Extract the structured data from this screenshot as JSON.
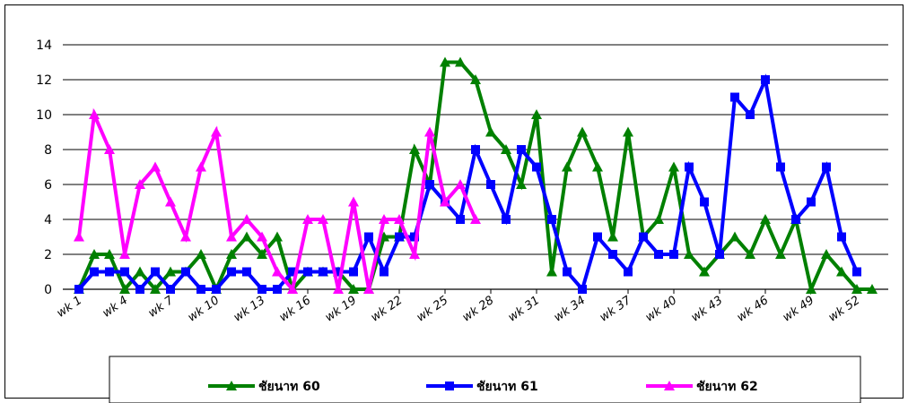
{
  "chart_data": {
    "type": "line",
    "title": "",
    "xlabel": "",
    "ylabel": "",
    "ylim": [
      0,
      14
    ],
    "yticks": [
      0,
      2,
      4,
      6,
      8,
      10,
      12,
      14
    ],
    "grid": "horizontal",
    "legend_position": "bottom",
    "x": [
      1,
      2,
      3,
      4,
      5,
      6,
      7,
      8,
      9,
      10,
      11,
      12,
      13,
      14,
      15,
      16,
      17,
      18,
      19,
      20,
      21,
      22,
      23,
      24,
      25,
      26,
      27,
      28,
      29,
      30,
      31,
      32,
      33,
      34,
      35,
      36,
      37,
      38,
      39,
      40,
      41,
      42,
      43,
      44,
      45,
      46,
      47,
      48,
      49,
      50,
      51,
      52,
      53
    ],
    "x_tick_labels": [
      {
        "week": 1,
        "label": "wk 1"
      },
      {
        "week": 4,
        "label": "wk 4"
      },
      {
        "week": 7,
        "label": "wk 7"
      },
      {
        "week": 10,
        "label": "wk 10"
      },
      {
        "week": 13,
        "label": "wk 13"
      },
      {
        "week": 16,
        "label": "wk 16"
      },
      {
        "week": 19,
        "label": "wk 19"
      },
      {
        "week": 22,
        "label": "wk 22"
      },
      {
        "week": 25,
        "label": "wk 25"
      },
      {
        "week": 28,
        "label": "wk 28"
      },
      {
        "week": 31,
        "label": "wk 31"
      },
      {
        "week": 34,
        "label": "wk 34"
      },
      {
        "week": 37,
        "label": "wk 37"
      },
      {
        "week": 40,
        "label": "wk 40"
      },
      {
        "week": 43,
        "label": "wk 43"
      },
      {
        "week": 46,
        "label": "wk 46"
      },
      {
        "week": 49,
        "label": "wk 49"
      },
      {
        "week": 52,
        "label": "wk 52"
      }
    ],
    "series": [
      {
        "name": "ชัยนาท 60",
        "color": "#008000",
        "marker": "triangle",
        "values": [
          0,
          2,
          2,
          0,
          1,
          0,
          1,
          1,
          2,
          0,
          2,
          3,
          2,
          3,
          0,
          1,
          1,
          1,
          0,
          0,
          3,
          3,
          8,
          6,
          13,
          13,
          12,
          9,
          8,
          6,
          10,
          1,
          7,
          9,
          7,
          3,
          9,
          3,
          4,
          7,
          2,
          1,
          2,
          3,
          2,
          4,
          2,
          4,
          0,
          2,
          1,
          0,
          0
        ]
      },
      {
        "name": "ชัยนาท 61",
        "color": "#0000FF",
        "marker": "square",
        "values": [
          0,
          1,
          1,
          1,
          0,
          1,
          0,
          1,
          0,
          0,
          1,
          1,
          0,
          0,
          1,
          1,
          1,
          1,
          1,
          3,
          1,
          3,
          3,
          6,
          5,
          4,
          8,
          6,
          4,
          8,
          7,
          4,
          1,
          0,
          3,
          2,
          1,
          3,
          2,
          2,
          7,
          5,
          2,
          11,
          10,
          12,
          7,
          4,
          5,
          7,
          3,
          1,
          null
        ]
      },
      {
        "name": "ชัยนาท 62",
        "color": "#FF00FF",
        "marker": "triangle",
        "values": [
          3,
          10,
          8,
          2,
          6,
          7,
          5,
          3,
          7,
          9,
          3,
          4,
          3,
          1,
          0,
          4,
          4,
          0,
          5,
          0,
          4,
          4,
          2,
          9,
          5,
          6,
          4,
          null,
          null,
          null,
          null,
          null,
          null,
          null,
          null,
          null,
          null,
          null,
          null,
          null,
          null,
          null,
          null,
          null,
          null,
          null,
          null,
          null,
          null,
          null,
          null,
          null,
          null
        ]
      }
    ]
  }
}
